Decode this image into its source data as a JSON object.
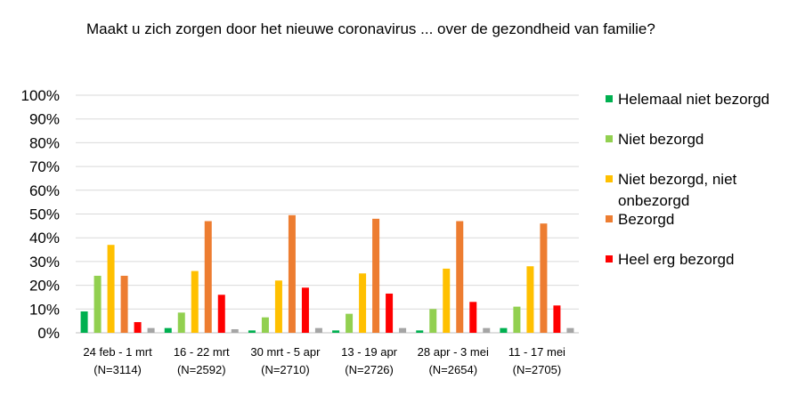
{
  "chart_data": {
    "type": "bar",
    "title": "Maakt u zich zorgen door het nieuwe coronavirus ... over de gezondheid van familie?",
    "categories": [
      [
        "24 feb - 1 mrt",
        "(N=3114)"
      ],
      [
        "16 - 22 mrt",
        "(N=2592)"
      ],
      [
        "30 mrt - 5 apr",
        "(N=2710)"
      ],
      [
        "13 - 19 apr",
        "(N=2726)"
      ],
      [
        "28 apr - 3 mei",
        "(N=2654)"
      ],
      [
        "11 - 17 mei",
        "(N=2705)"
      ]
    ],
    "series": [
      {
        "name": "Helemaal niet bezorgd",
        "color": "#00b050",
        "values": [
          9,
          2,
          1,
          1,
          1,
          2
        ]
      },
      {
        "name": "Niet bezorgd",
        "color": "#92d050",
        "values": [
          24,
          8.5,
          6.5,
          8,
          10,
          11
        ]
      },
      {
        "name": "Niet bezorgd, niet onbezorgd",
        "color": "#ffc000",
        "values": [
          37,
          26,
          22,
          25,
          27,
          28
        ]
      },
      {
        "name": "Bezorgd",
        "color": "#ed7d31",
        "values": [
          24,
          47,
          49.5,
          48,
          47,
          46
        ]
      },
      {
        "name": "Heel erg bezorgd",
        "color": "#ff0000",
        "values": [
          4.5,
          16,
          19,
          16.5,
          13,
          11.5
        ]
      },
      {
        "name": "",
        "color": "#a5a5a5",
        "values": [
          2,
          1.5,
          2,
          2,
          2,
          2
        ]
      }
    ],
    "yticks": [
      "0%",
      "10%",
      "20%",
      "30%",
      "40%",
      "50%",
      "60%",
      "70%",
      "80%",
      "90%",
      "100%"
    ],
    "ylim": [
      0,
      100
    ],
    "grid": true,
    "legend_position": "right"
  }
}
